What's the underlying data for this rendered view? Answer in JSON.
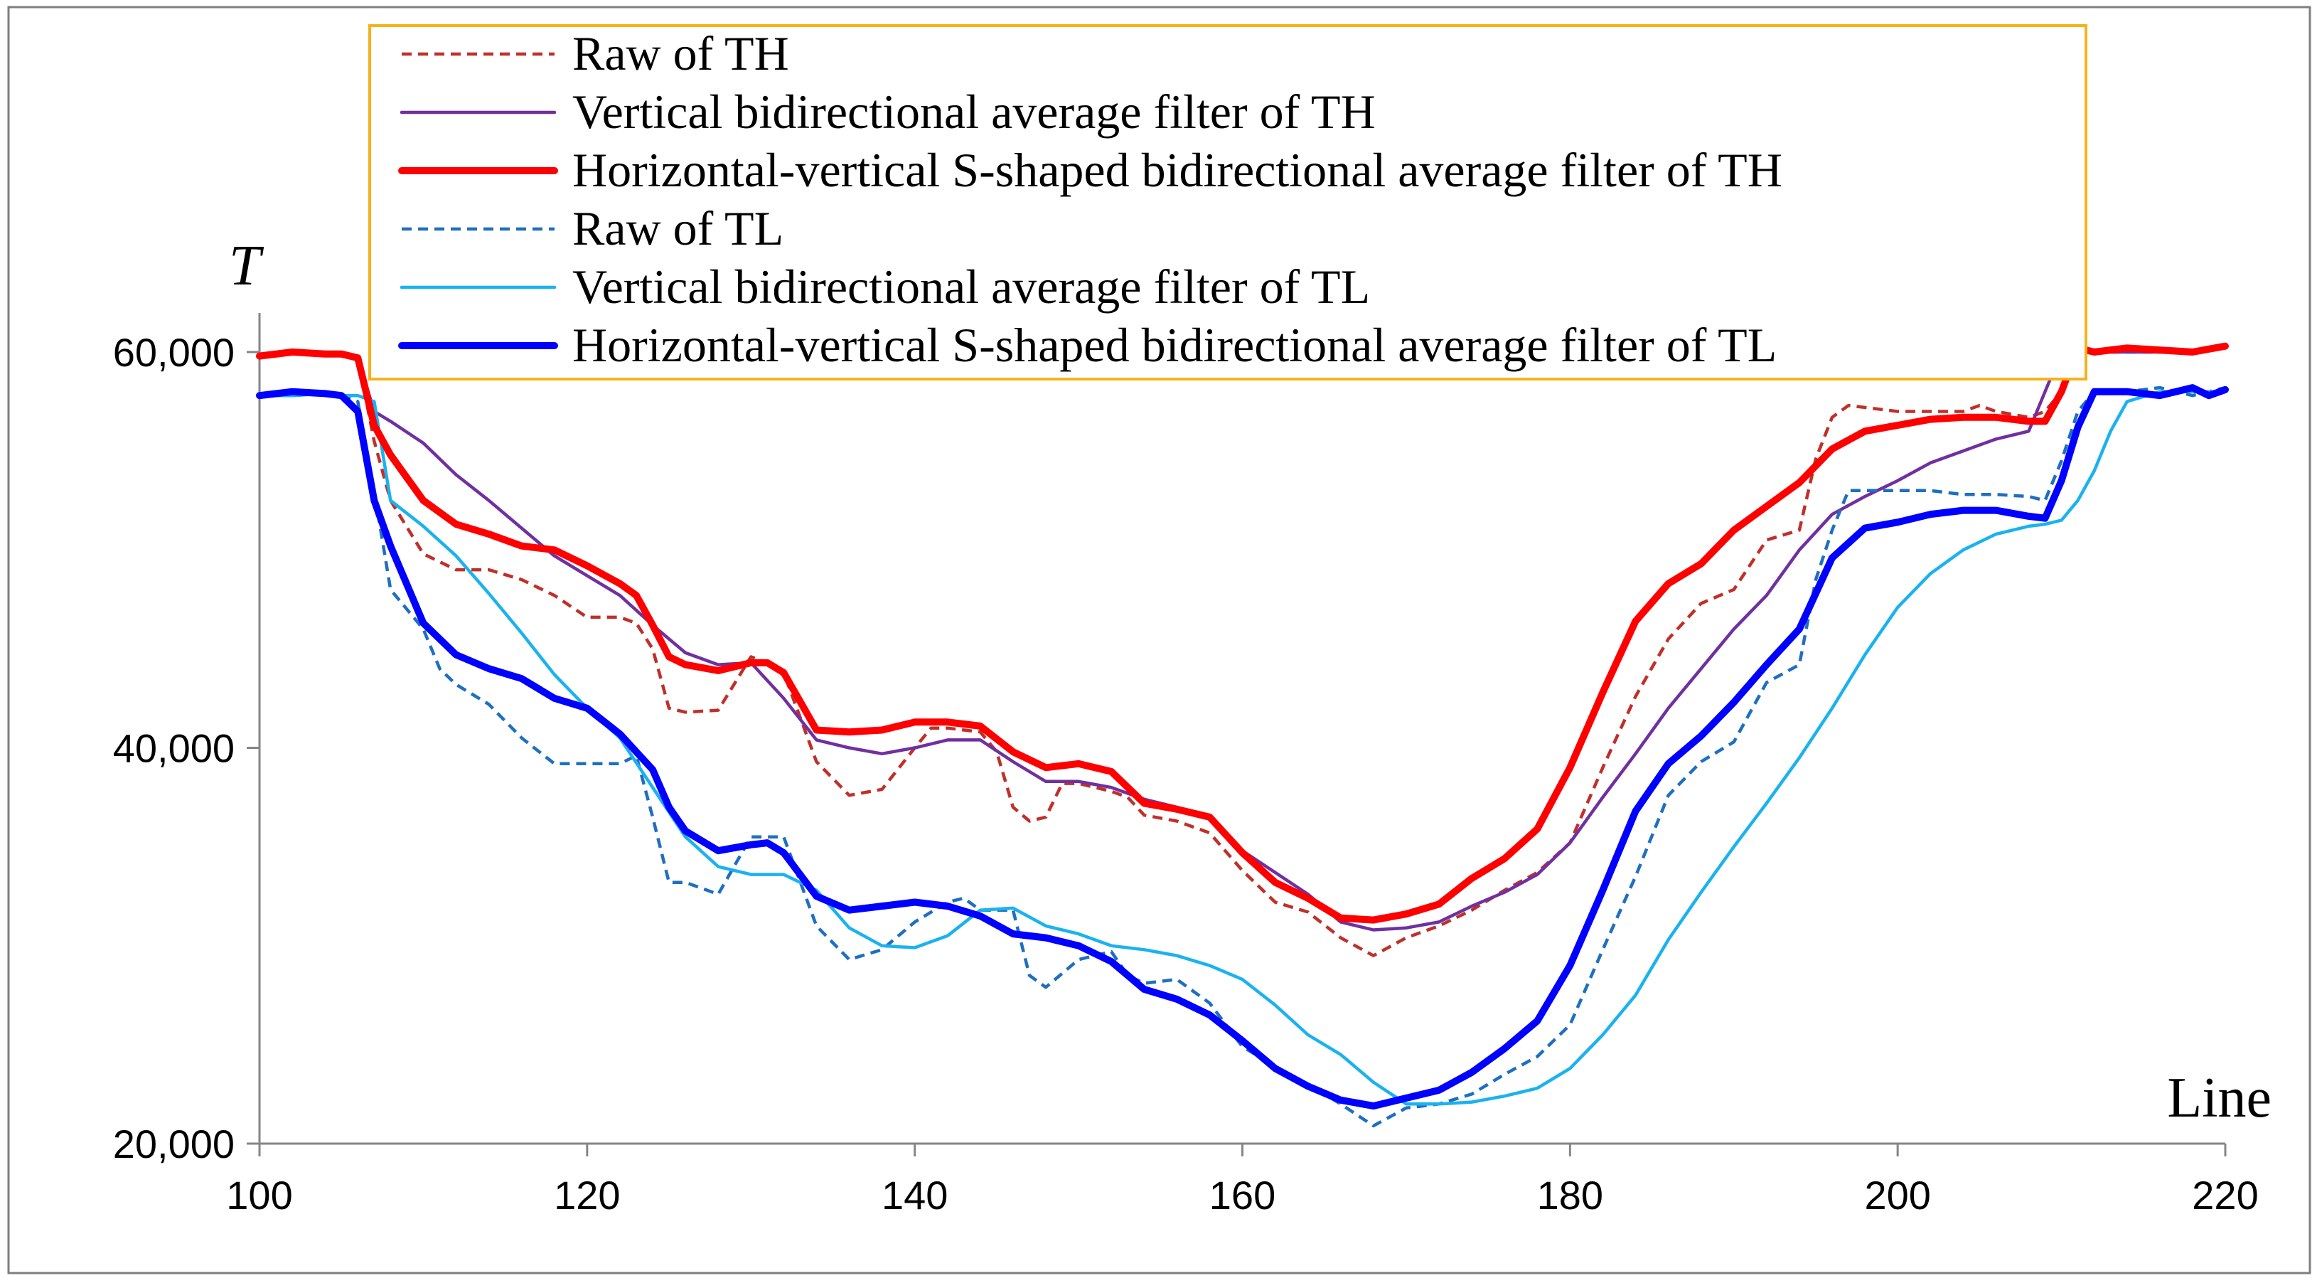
{
  "chart_data": {
    "type": "line",
    "xlabel": "Line",
    "ylabel": "T",
    "xlim": [
      100,
      220
    ],
    "ylim": [
      20000,
      60000
    ],
    "xticks": [
      {
        "value": 100,
        "label": "100"
      },
      {
        "value": 120,
        "label": "120"
      },
      {
        "value": 140,
        "label": "140"
      },
      {
        "value": 160,
        "label": "160"
      },
      {
        "value": 180,
        "label": "180"
      },
      {
        "value": 200,
        "label": "200"
      },
      {
        "value": 220,
        "label": "220"
      }
    ],
    "yticks": [
      {
        "value": 20000,
        "label": "20,000"
      },
      {
        "value": 40000,
        "label": "40,000"
      },
      {
        "value": 60000,
        "label": "60,000"
      }
    ],
    "grid": false,
    "legend_position": "top-center",
    "series": [
      {
        "name": "Raw of TH",
        "color": "#c0302a",
        "style": "dashed",
        "weight": "thin",
        "x": [
          100,
          102,
          104,
          105,
          106,
          107,
          108,
          110,
          112,
          114,
          116,
          118,
          120,
          122,
          123,
          124,
          125,
          126,
          128,
          130,
          131,
          132,
          134,
          136,
          138,
          140,
          141,
          142,
          144,
          145,
          146,
          147,
          148,
          149,
          150,
          152,
          153,
          154,
          156,
          158,
          160,
          162,
          164,
          166,
          168,
          170,
          172,
          174,
          176,
          178,
          180,
          182,
          184,
          186,
          188,
          190,
          192,
          194,
          195,
          196,
          197,
          198,
          200,
          202,
          204,
          205,
          206,
          208,
          209,
          210,
          211,
          212,
          214,
          216,
          218,
          220
        ],
        "values": [
          59800,
          60000,
          59900,
          59900,
          59700,
          55500,
          52500,
          49800,
          49000,
          49000,
          48500,
          47700,
          46600,
          46600,
          46300,
          45000,
          42000,
          41800,
          41900,
          44600,
          44300,
          43800,
          39300,
          37600,
          37900,
          40000,
          41000,
          41000,
          40800,
          39800,
          37000,
          36300,
          36500,
          38200,
          38200,
          37800,
          37500,
          36600,
          36300,
          35700,
          33800,
          32200,
          31700,
          30400,
          29500,
          30400,
          31000,
          31800,
          32800,
          33700,
          35200,
          39000,
          42600,
          45500,
          47300,
          48000,
          50500,
          51000,
          54600,
          56700,
          57300,
          57200,
          57000,
          57000,
          57000,
          57300,
          57000,
          56700,
          57000,
          58000,
          60100,
          60000,
          60000,
          60000,
          60000,
          60300
        ]
      },
      {
        "name": "Vertical bidirectional average filter of TH",
        "color": "#7030a0",
        "style": "solid",
        "weight": "thin",
        "x": [
          100,
          102,
          104,
          105,
          106,
          107,
          108,
          110,
          112,
          114,
          116,
          118,
          120,
          122,
          124,
          126,
          128,
          130,
          132,
          134,
          136,
          138,
          140,
          142,
          144,
          146,
          148,
          150,
          152,
          154,
          156,
          158,
          160,
          162,
          164,
          166,
          168,
          170,
          172,
          174,
          176,
          178,
          180,
          182,
          184,
          186,
          188,
          190,
          192,
          194,
          196,
          198,
          200,
          202,
          204,
          206,
          208,
          209,
          210,
          211,
          212,
          214,
          216,
          218,
          220
        ],
        "values": [
          59800,
          60000,
          59900,
          59900,
          59700,
          57000,
          56500,
          55400,
          53800,
          52500,
          51100,
          49700,
          48700,
          47700,
          46200,
          44800,
          44200,
          44300,
          42500,
          40400,
          40000,
          39700,
          40000,
          40400,
          40400,
          39300,
          38300,
          38300,
          38000,
          37400,
          37000,
          36500,
          34800,
          33700,
          32600,
          31200,
          30800,
          30900,
          31200,
          32000,
          32700,
          33600,
          35200,
          37500,
          39700,
          42000,
          44000,
          46000,
          47700,
          50000,
          51800,
          52700,
          53500,
          54400,
          55000,
          55600,
          56000,
          58000,
          60000,
          60100,
          60000,
          60000,
          60000,
          60000,
          60300
        ]
      },
      {
        "name": "Horizontal-vertical S-shaped bidirectional average filter of TH",
        "color": "#ff0000",
        "style": "solid",
        "weight": "thick",
        "x": [
          100,
          102,
          104,
          105,
          106,
          107,
          108,
          110,
          112,
          114,
          116,
          118,
          120,
          122,
          123,
          124,
          125,
          126,
          128,
          130,
          131,
          132,
          134,
          136,
          138,
          140,
          142,
          144,
          146,
          148,
          150,
          152,
          154,
          156,
          158,
          160,
          162,
          164,
          166,
          168,
          170,
          172,
          174,
          176,
          178,
          180,
          182,
          184,
          186,
          188,
          190,
          192,
          194,
          196,
          198,
          200,
          202,
          204,
          206,
          208,
          209,
          210,
          211,
          212,
          214,
          216,
          218,
          220
        ],
        "values": [
          59800,
          60000,
          59900,
          59900,
          59700,
          56300,
          54800,
          52500,
          51300,
          50800,
          50200,
          50000,
          49200,
          48300,
          47700,
          46200,
          44600,
          44200,
          43900,
          44300,
          44300,
          43800,
          40900,
          40800,
          40900,
          41300,
          41300,
          41100,
          39800,
          39000,
          39200,
          38800,
          37200,
          36900,
          36500,
          34700,
          33200,
          32400,
          31400,
          31300,
          31600,
          32100,
          33400,
          34400,
          35900,
          39000,
          42800,
          46400,
          48300,
          49300,
          51000,
          52200,
          53400,
          55100,
          56000,
          56300,
          56600,
          56700,
          56700,
          56500,
          56500,
          58000,
          60200,
          60000,
          60200,
          60100,
          60000,
          60300
        ]
      },
      {
        "name": "Raw of TL",
        "color": "#1f6fc0",
        "style": "dashed",
        "weight": "thin",
        "x": [
          100,
          102,
          104,
          105,
          106,
          107,
          108,
          110,
          111,
          112,
          114,
          116,
          118,
          120,
          122,
          123,
          124,
          125,
          126,
          128,
          130,
          132,
          134,
          136,
          138,
          140,
          142,
          143,
          144,
          146,
          147,
          148,
          150,
          152,
          153,
          154,
          156,
          158,
          160,
          162,
          164,
          166,
          168,
          170,
          172,
          174,
          176,
          178,
          180,
          182,
          184,
          186,
          188,
          190,
          192,
          194,
          195,
          196,
          197,
          198,
          200,
          202,
          204,
          206,
          208,
          209,
          210,
          211,
          212,
          214,
          216,
          218,
          220
        ],
        "values": [
          57800,
          57800,
          57900,
          57800,
          57500,
          53000,
          48000,
          46000,
          44000,
          43200,
          42200,
          40500,
          39200,
          39200,
          39200,
          39600,
          36500,
          33200,
          33200,
          32600,
          35500,
          35500,
          31000,
          29300,
          29800,
          31200,
          32200,
          32400,
          31800,
          31800,
          28500,
          27900,
          29300,
          29700,
          28500,
          28100,
          28300,
          27100,
          24900,
          23900,
          23000,
          22000,
          20900,
          21800,
          22000,
          22500,
          23500,
          24400,
          26000,
          29800,
          33500,
          37600,
          39300,
          40300,
          43300,
          44200,
          48500,
          51000,
          53000,
          53000,
          53000,
          53000,
          52800,
          52800,
          52700,
          52500,
          54500,
          57000,
          58000,
          58000,
          58200,
          57800,
          58200
        ]
      },
      {
        "name": "Vertical bidirectional average filter of TL",
        "color": "#1ab2ef",
        "style": "solid",
        "weight": "thin",
        "x": [
          100,
          102,
          104,
          105,
          106,
          107,
          108,
          110,
          112,
          114,
          116,
          118,
          120,
          122,
          124,
          126,
          128,
          130,
          132,
          134,
          136,
          138,
          140,
          142,
          144,
          146,
          148,
          150,
          152,
          154,
          156,
          158,
          160,
          162,
          164,
          166,
          168,
          170,
          172,
          174,
          176,
          178,
          180,
          182,
          184,
          186,
          188,
          190,
          192,
          194,
          196,
          198,
          200,
          202,
          204,
          206,
          208,
          209,
          210,
          211,
          212,
          213,
          214,
          216,
          218,
          220
        ],
        "values": [
          57800,
          57800,
          57900,
          57800,
          57800,
          57500,
          52500,
          51200,
          49700,
          47800,
          45800,
          43700,
          42000,
          40500,
          38000,
          35500,
          34000,
          33600,
          33600,
          32800,
          30900,
          30000,
          29900,
          30500,
          31800,
          31900,
          31000,
          30600,
          30000,
          29800,
          29500,
          29000,
          28300,
          27000,
          25500,
          24500,
          23100,
          22000,
          22000,
          22100,
          22400,
          22800,
          23800,
          25500,
          27500,
          30300,
          32700,
          35000,
          37200,
          39500,
          42000,
          44700,
          47100,
          48800,
          50000,
          50800,
          51200,
          51300,
          51500,
          52500,
          54000,
          56000,
          57500,
          58000,
          58000,
          58000
        ]
      },
      {
        "name": "Horizontal-vertical S-shaped bidirectional average filter of TL",
        "color": "#0000ff",
        "style": "solid",
        "weight": "thick",
        "x": [
          100,
          102,
          104,
          105,
          106,
          107,
          108,
          110,
          112,
          114,
          116,
          118,
          120,
          122,
          124,
          125,
          126,
          128,
          130,
          131,
          132,
          134,
          136,
          138,
          140,
          142,
          144,
          146,
          148,
          150,
          152,
          154,
          156,
          158,
          160,
          162,
          164,
          166,
          168,
          170,
          172,
          174,
          176,
          178,
          180,
          182,
          184,
          186,
          188,
          190,
          192,
          194,
          196,
          198,
          200,
          202,
          204,
          206,
          208,
          209,
          210,
          211,
          212,
          214,
          216,
          218,
          219,
          220
        ],
        "values": [
          57800,
          58000,
          57900,
          57800,
          57000,
          52500,
          50200,
          46300,
          44700,
          44000,
          43500,
          42500,
          42000,
          40700,
          38900,
          37000,
          35800,
          34800,
          35100,
          35200,
          34700,
          32500,
          31800,
          32000,
          32200,
          32000,
          31500,
          30600,
          30400,
          30000,
          29200,
          27800,
          27300,
          26500,
          25200,
          23800,
          22900,
          22200,
          21900,
          22300,
          22700,
          23600,
          24800,
          26200,
          29000,
          32800,
          36800,
          39200,
          40600,
          42300,
          44200,
          46000,
          49600,
          51100,
          51400,
          51800,
          52000,
          52000,
          51700,
          51600,
          53500,
          56200,
          58000,
          58000,
          57800,
          58200,
          57800,
          58100
        ]
      }
    ]
  }
}
